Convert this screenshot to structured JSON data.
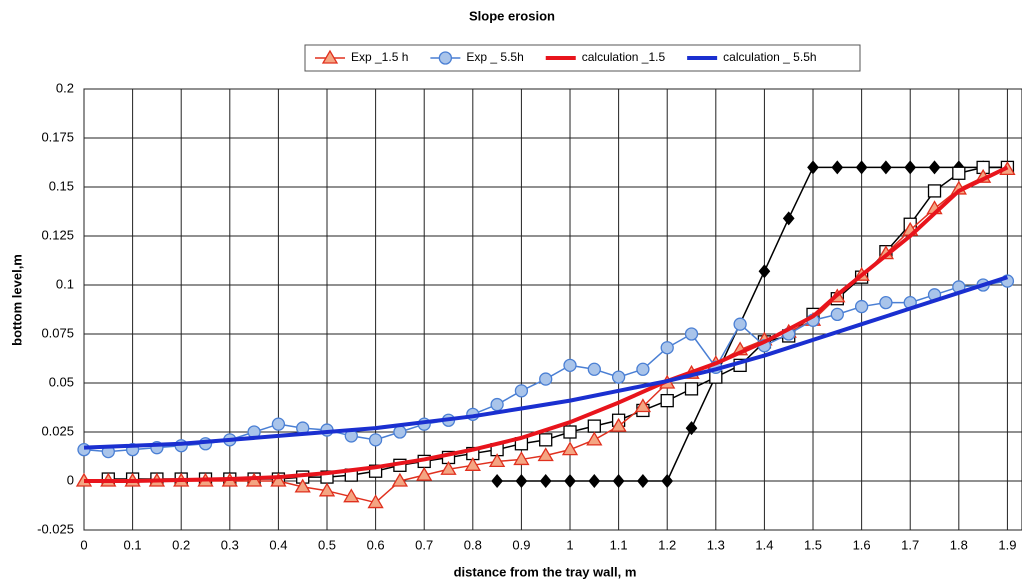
{
  "chart_data": {
    "type": "line",
    "title": "Slope erosion",
    "xlabel": "distance from the tray wall, m",
    "ylabel": "bottom level,m",
    "xlim": [
      0,
      1.93
    ],
    "ylim": [
      -0.025,
      0.2
    ],
    "xticks": [
      0,
      0.1,
      0.2,
      0.3,
      0.4,
      0.5,
      0.6,
      0.7,
      0.8,
      0.9,
      1,
      1.1,
      1.2,
      1.3,
      1.4,
      1.5,
      1.6,
      1.7,
      1.8,
      1.9
    ],
    "yticks": [
      -0.025,
      0,
      0.025,
      0.05,
      0.075,
      0.1,
      0.125,
      0.15,
      0.175,
      0.2
    ],
    "grid": true,
    "series": [
      {
        "color": "#000000",
        "marker": "diamond",
        "line_width": 1.5,
        "x": [
          0.85,
          0.9,
          0.95,
          1,
          1.05,
          1.1,
          1.15,
          1.2,
          1.25,
          1.4,
          1.45,
          1.5,
          1.55,
          1.6,
          1.65,
          1.7,
          1.75,
          1.8,
          1.85,
          1.9
        ],
        "values": [
          0,
          0,
          0,
          0,
          0,
          0,
          0,
          0,
          0.027,
          0.107,
          0.134,
          0.16,
          0.16,
          0.16,
          0.16,
          0.16,
          0.16,
          0.16,
          0.16,
          0.16
        ]
      },
      {
        "color": "#000000",
        "marker": "square",
        "line_width": 1.5,
        "x": [
          0.05,
          0.1,
          0.15,
          0.2,
          0.25,
          0.3,
          0.35,
          0.4,
          0.45,
          0.5,
          0.55,
          0.6,
          0.65,
          0.7,
          0.75,
          0.8,
          0.85,
          0.9,
          0.95,
          1,
          1.05,
          1.1,
          1.15,
          1.2,
          1.25,
          1.3,
          1.35,
          1.4,
          1.45,
          1.5,
          1.55,
          1.6,
          1.65,
          1.7,
          1.75,
          1.8,
          1.85,
          1.9
        ],
        "values": [
          0.001,
          0.001,
          0.001,
          0.001,
          0.001,
          0.001,
          0.001,
          0.001,
          0.002,
          0.002,
          0.003,
          0.005,
          0.008,
          0.01,
          0.012,
          0.014,
          0.016,
          0.019,
          0.021,
          0.025,
          0.028,
          0.031,
          0.036,
          0.041,
          0.047,
          0.053,
          0.059,
          0.071,
          0.074,
          0.085,
          0.093,
          0.104,
          0.117,
          0.131,
          0.148,
          0.157,
          0.16,
          0.16
        ]
      },
      {
        "name": "Exp _1.5 h",
        "color": "#e0301e",
        "fill": "#f4a582",
        "marker": "triangle",
        "line_width": 1.5,
        "x": [
          0,
          0.05,
          0.1,
          0.15,
          0.2,
          0.25,
          0.3,
          0.35,
          0.4,
          0.45,
          0.5,
          0.55,
          0.6,
          0.65,
          0.7,
          0.75,
          0.8,
          0.85,
          0.9,
          0.95,
          1,
          1.05,
          1.1,
          1.15,
          1.2,
          1.25,
          1.3,
          1.35,
          1.4,
          1.45,
          1.5,
          1.55,
          1.6,
          1.65,
          1.7,
          1.75,
          1.8,
          1.85,
          1.9
        ],
        "values": [
          0,
          0,
          0,
          0,
          0,
          0,
          0,
          0,
          0,
          -0.003,
          -0.005,
          -0.008,
          -0.011,
          0,
          0.003,
          0.006,
          0.008,
          0.01,
          0.011,
          0.013,
          0.016,
          0.021,
          0.028,
          0.038,
          0.05,
          0.055,
          0.06,
          0.067,
          0.072,
          0.076,
          0.082,
          0.094,
          0.105,
          0.116,
          0.128,
          0.139,
          0.149,
          0.155,
          0.159
        ]
      },
      {
        "name": "Exp _ 5.5h",
        "color": "#4a7fd4",
        "fill": "#a9c4ea",
        "marker": "circle",
        "line_width": 1.5,
        "x": [
          0,
          0.05,
          0.1,
          0.15,
          0.2,
          0.25,
          0.3,
          0.35,
          0.4,
          0.45,
          0.5,
          0.55,
          0.6,
          0.65,
          0.7,
          0.75,
          0.8,
          0.85,
          0.9,
          0.95,
          1,
          1.05,
          1.1,
          1.15,
          1.2,
          1.25,
          1.3,
          1.35,
          1.4,
          1.45,
          1.5,
          1.55,
          1.6,
          1.65,
          1.7,
          1.75,
          1.8,
          1.85,
          1.9
        ],
        "values": [
          0.016,
          0.015,
          0.016,
          0.017,
          0.018,
          0.019,
          0.021,
          0.025,
          0.029,
          0.027,
          0.026,
          0.023,
          0.021,
          0.025,
          0.029,
          0.031,
          0.034,
          0.039,
          0.046,
          0.052,
          0.059,
          0.057,
          0.053,
          0.057,
          0.068,
          0.075,
          0.058,
          0.08,
          0.069,
          0.075,
          0.082,
          0.085,
          0.089,
          0.091,
          0.091,
          0.095,
          0.099,
          0.1,
          0.102
        ]
      },
      {
        "name": "calculation _1.5",
        "color": "#e8141c",
        "marker": "none",
        "line_width": 4,
        "x": [
          0,
          0.1,
          0.2,
          0.3,
          0.4,
          0.5,
          0.6,
          0.7,
          0.8,
          0.9,
          1,
          1.1,
          1.2,
          1.3,
          1.4,
          1.5,
          1.55,
          1.6,
          1.7,
          1.8,
          1.9
        ],
        "values": [
          0,
          0,
          0.0005,
          0.001,
          0.002,
          0.004,
          0.007,
          0.011,
          0.016,
          0.022,
          0.03,
          0.04,
          0.051,
          0.06,
          0.071,
          0.084,
          0.095,
          0.105,
          0.125,
          0.148,
          0.16
        ]
      },
      {
        "name": "calculation _ 5.5h",
        "color": "#1a2fd0",
        "marker": "none",
        "line_width": 4,
        "x": [
          0,
          0.1,
          0.2,
          0.3,
          0.4,
          0.5,
          0.6,
          0.7,
          0.8,
          0.9,
          1,
          1.1,
          1.2,
          1.3,
          1.4,
          1.5,
          1.6,
          1.7,
          1.8,
          1.9
        ],
        "values": [
          0.017,
          0.018,
          0.019,
          0.021,
          0.023,
          0.025,
          0.027,
          0.03,
          0.033,
          0.037,
          0.041,
          0.046,
          0.051,
          0.057,
          0.064,
          0.072,
          0.08,
          0.088,
          0.096,
          0.104
        ]
      }
    ]
  }
}
